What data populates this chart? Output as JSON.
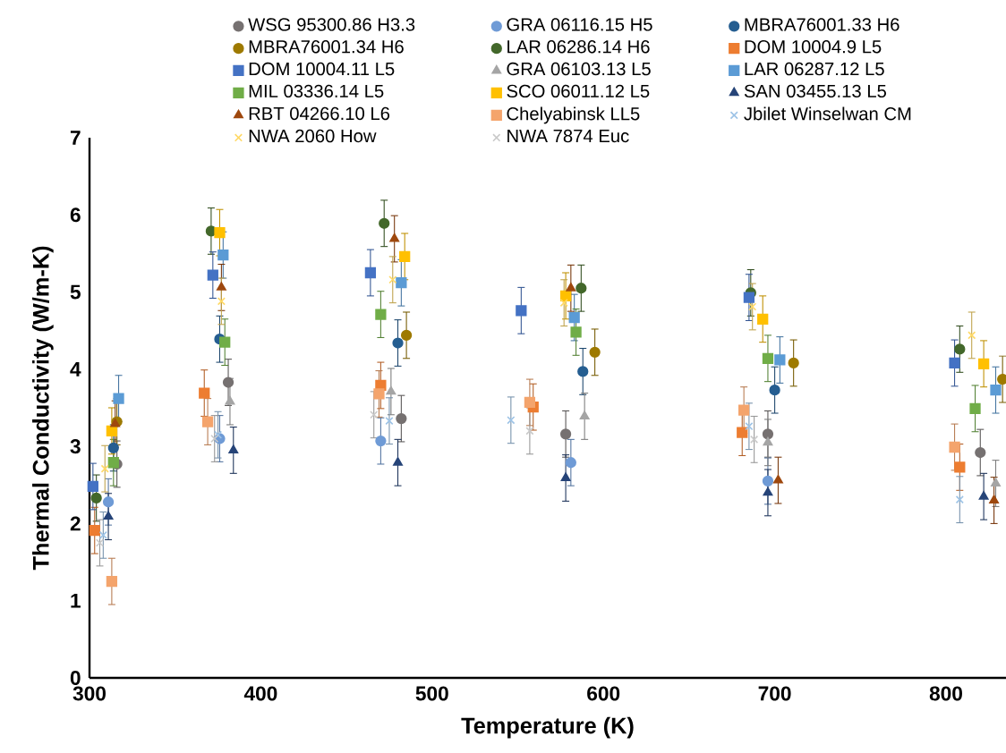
{
  "chart_data": {
    "type": "scatter",
    "xlabel": "Temperature (K)",
    "ylabel": "Thermal Conductivity (W/m-K)",
    "xlim": [
      300,
      835
    ],
    "ylim": [
      0,
      7
    ],
    "xticks": [
      300,
      400,
      500,
      600,
      700,
      800
    ],
    "yticks": [
      0,
      1,
      2,
      3,
      4,
      5,
      6,
      7
    ],
    "grid": false,
    "legend": "top",
    "series": [
      {
        "name": "WSG 95300.86 H3.3",
        "color": "#767171",
        "marker": "circle",
        "x": [
          316,
          381,
          482,
          578,
          696,
          820
        ],
        "values": [
          2.77,
          3.83,
          3.36,
          3.16,
          3.16,
          2.92
        ],
        "errors": [
          0.3,
          0.3,
          0.3,
          0.3,
          0.3,
          0.3
        ]
      },
      {
        "name": "GRA 06116.15 H5",
        "color": "#6f9bd6",
        "marker": "circle",
        "x": [
          311,
          376,
          470,
          581,
          696
        ],
        "values": [
          2.28,
          3.1,
          3.07,
          2.79,
          2.55
        ],
        "errors": [
          0.3,
          0.3,
          0.3,
          0.3,
          0.3
        ]
      },
      {
        "name": "MBRA76001.33 H6",
        "color": "#255e91",
        "marker": "circle",
        "x": [
          314,
          376,
          480,
          588,
          700
        ],
        "values": [
          2.98,
          4.39,
          4.34,
          3.97,
          3.73
        ],
        "errors": [
          0.3,
          0.3,
          0.3,
          0.3,
          0.3
        ]
      },
      {
        "name": "MBRA76001.34 H6",
        "color": "#9e7a00",
        "marker": "circle",
        "x": [
          316,
          485,
          595,
          711,
          833
        ],
        "values": [
          3.32,
          4.44,
          4.22,
          4.08,
          3.87
        ],
        "errors": [
          0.3,
          0.3,
          0.3,
          0.3,
          0.3
        ]
      },
      {
        "name": "LAR 06286.14 H6",
        "color": "#43682b",
        "marker": "circle",
        "x": [
          304,
          371,
          472,
          587,
          686,
          808
        ],
        "values": [
          2.33,
          5.79,
          5.89,
          5.05,
          4.99,
          4.26
        ],
        "errors": [
          0.3,
          0.3,
          0.3,
          0.3,
          0.3,
          0.3
        ]
      },
      {
        "name": "DOM 10004.9 L5",
        "color": "#ed7d31",
        "marker": "square",
        "x": [
          303,
          367,
          470,
          559,
          681,
          808
        ],
        "values": [
          1.91,
          3.69,
          3.79,
          3.51,
          3.18,
          2.73
        ],
        "errors": [
          0.3,
          0.3,
          0.3,
          0.3,
          0.3,
          0.3
        ]
      },
      {
        "name": "DOM 10004.11 L5",
        "color": "#4472c4",
        "marker": "square",
        "x": [
          302,
          372,
          464,
          552,
          685,
          805
        ],
        "values": [
          2.48,
          5.22,
          5.25,
          4.76,
          4.93,
          4.08
        ],
        "errors": [
          0.3,
          0.3,
          0.3,
          0.3,
          0.3,
          0.3
        ]
      },
      {
        "name": "GRA 06103.13 L5",
        "color": "#a5a5a5",
        "marker": "triangle",
        "x": [
          382,
          476,
          589,
          696,
          829
        ],
        "values": [
          3.58,
          3.71,
          3.39,
          3.05,
          2.52
        ],
        "errors": [
          0.3,
          0.3,
          0.3,
          0.3,
          0.3
        ]
      },
      {
        "name": "LAR 06287.12 L5",
        "color": "#5b9bd5",
        "marker": "square",
        "x": [
          317,
          378,
          482,
          583,
          703,
          829
        ],
        "values": [
          3.62,
          5.48,
          5.12,
          4.67,
          4.12,
          3.73
        ],
        "errors": [
          0.3,
          0.3,
          0.3,
          0.3,
          0.3,
          0.3
        ]
      },
      {
        "name": "MIL 03336.14 L5",
        "color": "#70ad47",
        "marker": "square",
        "x": [
          314,
          379,
          470,
          584,
          696,
          817
        ],
        "values": [
          2.79,
          4.35,
          4.71,
          4.48,
          4.14,
          3.49
        ],
        "errors": [
          0.3,
          0.3,
          0.3,
          0.3,
          0.3,
          0.3
        ]
      },
      {
        "name": "SCO 06011.12 L5",
        "color": "#ffc000",
        "marker": "square",
        "x": [
          313,
          376,
          484,
          578,
          693,
          822
        ],
        "values": [
          3.2,
          5.77,
          5.46,
          4.95,
          4.65,
          4.07
        ],
        "errors": [
          0.3,
          0.3,
          0.3,
          0.3,
          0.3,
          0.3
        ]
      },
      {
        "name": "SAN 03455.13 L5",
        "color": "#264478",
        "marker": "triangle",
        "x": [
          311,
          384,
          480,
          578,
          696,
          822
        ],
        "values": [
          2.09,
          2.95,
          2.79,
          2.59,
          2.4,
          2.35
        ],
        "errors": [
          0.3,
          0.3,
          0.3,
          0.3,
          0.3,
          0.3
        ]
      },
      {
        "name": "RBT 04266.10 L6",
        "color": "#9e480e",
        "marker": "triangle",
        "x": [
          315,
          377,
          478,
          581,
          702,
          828
        ],
        "values": [
          3.29,
          5.06,
          5.69,
          5.05,
          2.56,
          2.3
        ],
        "errors": [
          0.3,
          0.3,
          0.3,
          0.3,
          0.3,
          0.3
        ]
      },
      {
        "name": "Chelyabinsk LL5",
        "color": "#f4a46c",
        "marker": "square",
        "x": [
          313,
          369,
          469,
          557,
          682,
          805
        ],
        "values": [
          1.25,
          3.32,
          3.68,
          3.57,
          3.47,
          2.99
        ],
        "errors": [
          0.3,
          0.3,
          0.3,
          0.3,
          0.3,
          0.3
        ]
      },
      {
        "name": "Jbilet Winselwan CM",
        "color": "#9dc3e6",
        "marker": "cross",
        "x": [
          308,
          375,
          475,
          546,
          685,
          808
        ],
        "values": [
          1.85,
          3.15,
          3.33,
          3.34,
          3.26,
          2.31
        ],
        "errors": [
          0.3,
          0.3,
          0.3,
          0.3,
          0.3,
          0.3
        ]
      },
      {
        "name": "NWA 2060 How",
        "color": "#ffd966",
        "marker": "cross",
        "x": [
          309,
          377,
          477,
          577,
          687,
          815
        ],
        "values": [
          2.71,
          4.88,
          5.16,
          4.86,
          4.81,
          4.44
        ],
        "errors": [
          0.3,
          0.3,
          0.3,
          0.3,
          0.3,
          0.3
        ]
      },
      {
        "name": "NWA 7874 Euc",
        "color": "#c9c9c9",
        "marker": "cross",
        "x": [
          306,
          373,
          466,
          557,
          688
        ],
        "values": [
          1.75,
          3.1,
          3.41,
          3.2,
          3.09
        ],
        "errors": [
          0.3,
          0.3,
          0.3,
          0.3,
          0.3
        ]
      }
    ]
  }
}
